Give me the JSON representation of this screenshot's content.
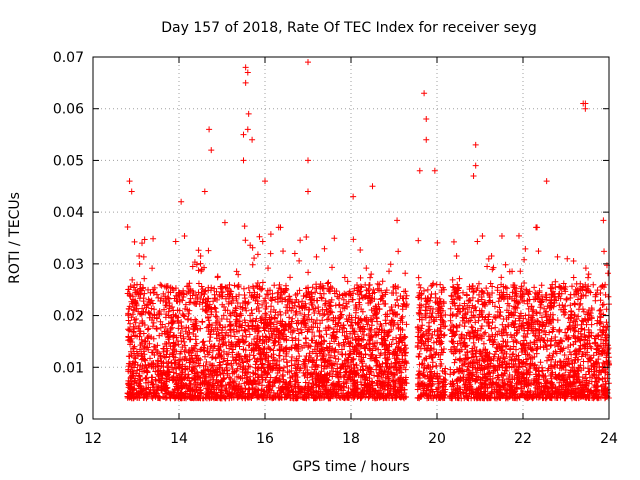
{
  "chart_data": {
    "type": "scatter",
    "title": "Day 157 of 2018, Rate Of TEC Index for receiver seyg",
    "xlabel": "GPS time / hours",
    "ylabel": "ROTI / TECUs",
    "xlim": [
      12,
      24
    ],
    "ylim": [
      0,
      0.07
    ],
    "xticks": [
      12,
      14,
      16,
      18,
      20,
      22,
      24
    ],
    "yticks": [
      0,
      0.01,
      0.02,
      0.03,
      0.04,
      0.05,
      0.06,
      0.07
    ],
    "ytick_labels": [
      "0",
      "0.01",
      "0.02",
      "0.03",
      "0.04",
      "0.05",
      "0.06",
      "0.07"
    ],
    "grid": true,
    "marker": "+",
    "color": "#ff0000",
    "series": [
      {
        "name": "ROTI",
        "segments": [
          {
            "start": 12.8,
            "end": 19.3,
            "gap_start": 19.3,
            "gap_end": 19.55
          },
          {
            "start": 19.55,
            "end": 20.2
          },
          {
            "start": 20.3,
            "end": 24.0
          }
        ],
        "typical_range": [
          0.004,
          0.03
        ],
        "outliers": [
          {
            "x": 12.85,
            "y": 0.046
          },
          {
            "x": 12.9,
            "y": 0.044
          },
          {
            "x": 14.05,
            "y": 0.042
          },
          {
            "x": 14.6,
            "y": 0.044
          },
          {
            "x": 14.7,
            "y": 0.056
          },
          {
            "x": 14.75,
            "y": 0.052
          },
          {
            "x": 15.55,
            "y": 0.068
          },
          {
            "x": 15.6,
            "y": 0.067
          },
          {
            "x": 15.55,
            "y": 0.065
          },
          {
            "x": 15.62,
            "y": 0.059
          },
          {
            "x": 15.6,
            "y": 0.056
          },
          {
            "x": 15.5,
            "y": 0.055
          },
          {
            "x": 15.5,
            "y": 0.05
          },
          {
            "x": 15.7,
            "y": 0.054
          },
          {
            "x": 16.0,
            "y": 0.046
          },
          {
            "x": 17.0,
            "y": 0.069
          },
          {
            "x": 17.0,
            "y": 0.05
          },
          {
            "x": 17.0,
            "y": 0.044
          },
          {
            "x": 18.05,
            "y": 0.043
          },
          {
            "x": 18.5,
            "y": 0.045
          },
          {
            "x": 19.7,
            "y": 0.063
          },
          {
            "x": 19.75,
            "y": 0.058
          },
          {
            "x": 19.75,
            "y": 0.054
          },
          {
            "x": 19.6,
            "y": 0.048
          },
          {
            "x": 19.95,
            "y": 0.048
          },
          {
            "x": 20.9,
            "y": 0.053
          },
          {
            "x": 20.9,
            "y": 0.049
          },
          {
            "x": 20.85,
            "y": 0.047
          },
          {
            "x": 22.55,
            "y": 0.046
          },
          {
            "x": 23.45,
            "y": 0.061
          },
          {
            "x": 23.4,
            "y": 0.061
          },
          {
            "x": 23.45,
            "y": 0.06
          }
        ]
      }
    ]
  }
}
